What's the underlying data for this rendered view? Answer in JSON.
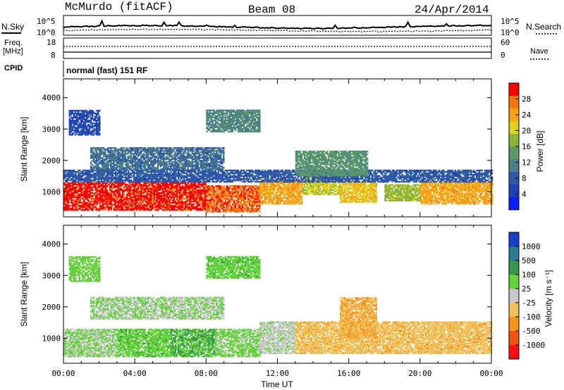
{
  "header": {
    "station": "McMurdo (fitACF)",
    "beam": "Beam 08",
    "date": "24/Apr/2014"
  },
  "status_panel": {
    "nsky_label": "N.Sky",
    "nsearch_label": "N.Search",
    "noise_ticks": [
      "10^5",
      "10^0"
    ],
    "freq_label": "Freq.",
    "freq_unit": "[MHz]",
    "freq_ticks": [
      "18",
      "8"
    ],
    "nave_label": "Nave",
    "nave_ticks": [
      "60",
      "0"
    ],
    "cpid_label": "CPID",
    "cpid_text": "normal (fast) 151 RF"
  },
  "x_axis": {
    "label": "Time UT",
    "ticks": [
      "00:00",
      "04:00",
      "08:00",
      "12:00",
      "16:00",
      "20:00",
      "00:00"
    ]
  },
  "colors": {
    "power_scale": [
      "#0a1eff",
      "#2040b8",
      "#2f59a8",
      "#4e7f88",
      "#5a9a6a",
      "#8ab43a",
      "#e0cf1c",
      "#f7a31a",
      "#f07a12",
      "#ff0000"
    ],
    "velocity_scale": [
      "#ff1010",
      "#f25410",
      "#f7931e",
      "#f0c05a",
      "#c8c8c8",
      "#64d23a",
      "#3c9650",
      "#2a7a90",
      "#1a3fc8"
    ]
  },
  "chart_data": [
    {
      "type": "heatmap",
      "panel": "power",
      "ylabel": "Slant Range [km]",
      "yticks": [
        "4000",
        "3000",
        "2000",
        "1000"
      ],
      "ylim": [
        200,
        4600
      ],
      "xlim_hours": [
        0,
        24
      ],
      "colorbar": {
        "label": "Power [dB]",
        "ticks": [
          "28",
          "24",
          "20",
          "16",
          "12",
          "8",
          "4"
        ],
        "range": [
          0,
          32
        ]
      },
      "regions": [
        {
          "t0": 0.0,
          "t1": 8.0,
          "r0": 400,
          "r1": 1300,
          "value": 30
        },
        {
          "t0": 8.0,
          "t1": 11.0,
          "r0": 350,
          "r1": 1200,
          "value": 28
        },
        {
          "t0": 11.0,
          "t1": 13.4,
          "r0": 600,
          "r1": 1400,
          "value": 24
        },
        {
          "t0": 13.4,
          "t1": 15.5,
          "r0": 900,
          "r1": 1500,
          "value": 20
        },
        {
          "t0": 15.5,
          "t1": 17.5,
          "r0": 650,
          "r1": 1300,
          "value": 22
        },
        {
          "t0": 18.0,
          "t1": 20.0,
          "r0": 700,
          "r1": 1200,
          "value": 18
        },
        {
          "t0": 20.0,
          "t1": 24.0,
          "r0": 600,
          "r1": 1300,
          "value": 24
        },
        {
          "t0": 0.0,
          "t1": 24.0,
          "r0": 1300,
          "r1": 1700,
          "value": 8
        },
        {
          "t0": 1.5,
          "t1": 9.0,
          "r0": 1700,
          "r1": 2400,
          "value": 10
        },
        {
          "t0": 8.0,
          "t1": 11.0,
          "r0": 2900,
          "r1": 3600,
          "value": 12
        },
        {
          "t0": 0.3,
          "t1": 2.0,
          "r0": 2800,
          "r1": 3600,
          "value": 6
        },
        {
          "t0": 13.0,
          "t1": 17.0,
          "r0": 1500,
          "r1": 2300,
          "value": 14
        }
      ]
    },
    {
      "type": "heatmap",
      "panel": "velocity",
      "ylabel": "Slant Range [km]",
      "yticks": [
        "4000",
        "3000",
        "2000",
        "1000"
      ],
      "ylim": [
        200,
        4600
      ],
      "xlim_hours": [
        0,
        24
      ],
      "colorbar": {
        "label": "Velocity [m s⁻¹]",
        "ticks": [
          "1000",
          "500",
          "100",
          "25",
          "-25",
          "-100",
          "-500",
          "-1000"
        ],
        "range": [
          -1250,
          1250
        ]
      },
      "regions": [
        {
          "t0": 0.0,
          "t1": 3.0,
          "r0": 400,
          "r1": 1300,
          "value": 150
        },
        {
          "t0": 3.0,
          "t1": 6.0,
          "r0": 400,
          "r1": 1300,
          "value": 300
        },
        {
          "t0": 6.0,
          "t1": 8.5,
          "r0": 400,
          "r1": 1300,
          "value": 400
        },
        {
          "t0": 8.5,
          "t1": 11.0,
          "r0": 400,
          "r1": 1300,
          "value": 200
        },
        {
          "t0": 11.0,
          "t1": 13.0,
          "r0": 500,
          "r1": 1500,
          "value": 50
        },
        {
          "t0": 13.0,
          "t1": 24.0,
          "r0": 500,
          "r1": 1500,
          "value": -300
        },
        {
          "t0": 15.5,
          "t1": 17.5,
          "r0": 1000,
          "r1": 2300,
          "value": -400
        },
        {
          "t0": 1.5,
          "t1": 9.0,
          "r0": 1600,
          "r1": 2300,
          "value": 120
        },
        {
          "t0": 8.0,
          "t1": 11.0,
          "r0": 2900,
          "r1": 3600,
          "value": 300
        },
        {
          "t0": 0.3,
          "t1": 2.0,
          "r0": 2800,
          "r1": 3600,
          "value": 250
        }
      ]
    }
  ]
}
